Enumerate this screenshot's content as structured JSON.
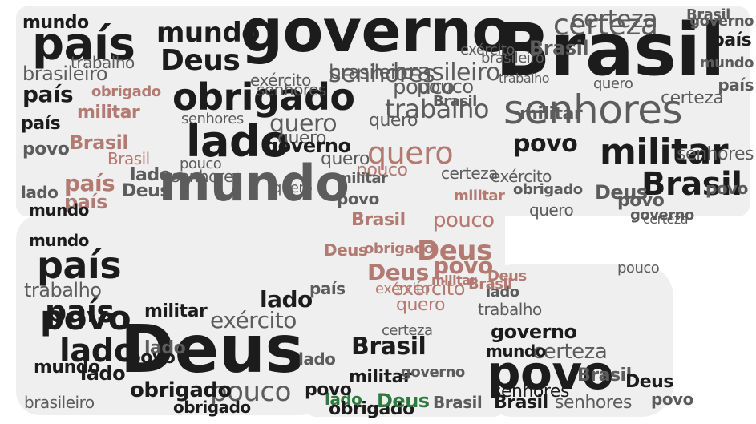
{
  "image": {
    "kind": "word-cloud",
    "colors": {
      "dark": "#1c1c1c",
      "gray": "#5c5c5c",
      "mid": "#7a7a7a",
      "light": "#9a9a9a",
      "rose": "#b37a72",
      "rose_light": "#c9968c",
      "green": "#2f7a3e",
      "gold": "#b8a23a",
      "shape_fill": "#efefef"
    }
  },
  "words": [
    {
      "t": "governo"
    },
    {
      "t": "Brasil"
    },
    {
      "t": "certeza"
    },
    {
      "t": "país"
    },
    {
      "t": "mundo"
    },
    {
      "t": "Deus"
    },
    {
      "t": "obrigado"
    },
    {
      "t": "senhores"
    },
    {
      "t": "lado"
    },
    {
      "t": "mundo"
    },
    {
      "t": "militar"
    },
    {
      "t": "Brasil"
    },
    {
      "t": "brasileiro"
    },
    {
      "t": "trabalho"
    },
    {
      "t": "exército"
    },
    {
      "t": "pouco"
    },
    {
      "t": "quero"
    },
    {
      "t": "povo"
    },
    {
      "t": "quero"
    },
    {
      "t": "país"
    },
    {
      "t": "país"
    },
    {
      "t": "país"
    },
    {
      "t": "povo"
    },
    {
      "t": "país"
    },
    {
      "t": "lado"
    },
    {
      "t": "Brasil"
    },
    {
      "t": "militar"
    },
    {
      "t": "obrigado"
    },
    {
      "t": "trabalho"
    },
    {
      "t": "país"
    },
    {
      "t": "povo"
    },
    {
      "t": "lado"
    },
    {
      "t": "povo"
    },
    {
      "t": "lado"
    },
    {
      "t": "lado"
    },
    {
      "t": "Deus"
    },
    {
      "t": "exército"
    },
    {
      "t": "pouco"
    },
    {
      "t": "obrigado"
    },
    {
      "t": "povo"
    },
    {
      "t": "governo"
    },
    {
      "t": "certeza"
    },
    {
      "t": "Deus"
    },
    {
      "t": "senhores"
    },
    {
      "t": "Brasil"
    },
    {
      "t": "Deus"
    },
    {
      "t": "povo"
    },
    {
      "t": "pouco"
    },
    {
      "t": "exército"
    },
    {
      "t": "quero"
    },
    {
      "t": "Brasil"
    },
    {
      "t": "militar"
    },
    {
      "t": "lado"
    },
    {
      "t": "militar"
    },
    {
      "t": "mundo"
    },
    {
      "t": "quero"
    },
    {
      "t": "pouco"
    },
    {
      "t": "senhores"
    },
    {
      "t": "Deus"
    },
    {
      "t": "Brasil"
    },
    {
      "t": "brasileiro"
    },
    {
      "t": "certeza"
    },
    {
      "t": "trabalho"
    },
    {
      "t": "mundo"
    },
    {
      "t": "quero"
    },
    {
      "t": "senhores"
    },
    {
      "t": "exército"
    },
    {
      "t": "povo"
    },
    {
      "t": "pouco"
    },
    {
      "t": "Brasil"
    },
    {
      "t": "obrigado"
    },
    {
      "t": "povo"
    },
    {
      "t": "senhores"
    },
    {
      "t": "brasileiro"
    },
    {
      "t": "lado"
    },
    {
      "t": "mundo"
    },
    {
      "t": "certeza"
    },
    {
      "t": "quero"
    },
    {
      "t": "país"
    },
    {
      "t": "lado"
    },
    {
      "t": "Brasil"
    },
    {
      "t": "Deus"
    },
    {
      "t": "militar"
    },
    {
      "t": "governo"
    },
    {
      "t": "Brasil"
    },
    {
      "t": "país"
    },
    {
      "t": "mundo"
    },
    {
      "t": "Deus"
    },
    {
      "t": "obrigado"
    },
    {
      "t": "povo"
    },
    {
      "t": "certeza"
    },
    {
      "t": "senhores"
    },
    {
      "t": "quero"
    },
    {
      "t": "Brasil"
    },
    {
      "t": "governo"
    },
    {
      "t": "trabalho"
    },
    {
      "t": "brasileiro"
    },
    {
      "t": "exército"
    },
    {
      "t": "militar"
    },
    {
      "t": "pouco"
    },
    {
      "t": "Brasil"
    },
    {
      "t": "país"
    },
    {
      "t": "Deus"
    },
    {
      "t": "lado"
    },
    {
      "t": "povo"
    },
    {
      "t": "mundo"
    },
    {
      "t": "obrigado"
    },
    {
      "t": "governo"
    },
    {
      "t": "certeza"
    },
    {
      "t": "senhores"
    },
    {
      "t": "quero"
    },
    {
      "t": "trabalho"
    },
    {
      "t": "militar"
    },
    {
      "t": "Deus"
    },
    {
      "t": "Brasil"
    },
    {
      "t": "pouco"
    },
    {
      "t": "exército"
    },
    {
      "t": "país"
    },
    {
      "t": "lado"
    },
    {
      "t": "povo"
    },
    {
      "t": "mundo"
    },
    {
      "t": "Deus"
    },
    {
      "t": "governo"
    },
    {
      "t": "obrigado"
    },
    {
      "t": "Brasil"
    },
    {
      "t": "brasileiro"
    },
    {
      "t": "certeza"
    },
    {
      "t": "quero"
    },
    {
      "t": "senhores"
    },
    {
      "t": "militar"
    }
  ]
}
